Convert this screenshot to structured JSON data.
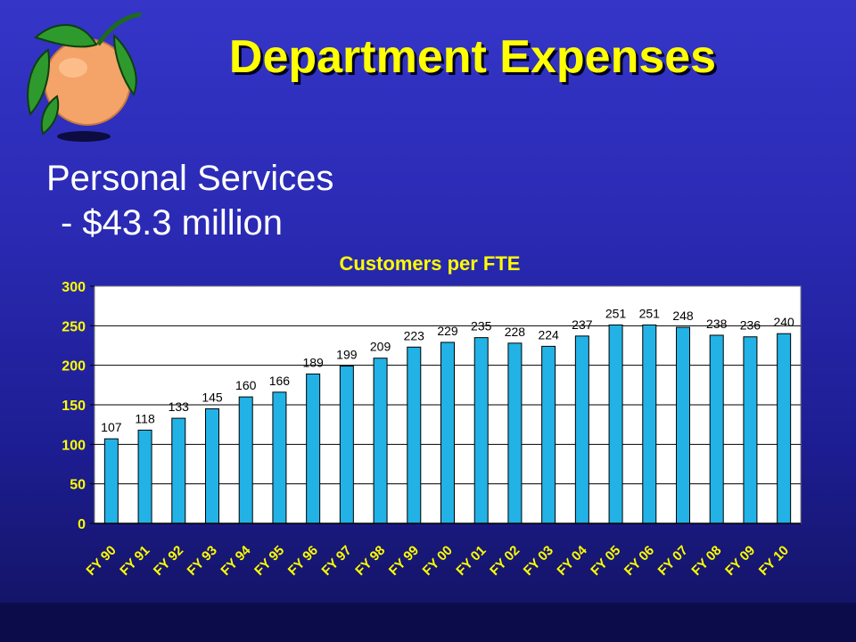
{
  "slide": {
    "title": "Department Expenses",
    "subtitle_line1": "Personal Services",
    "subtitle_line2": "- $43.3 million",
    "logo_icon": "orange-fruit-icon"
  },
  "colors": {
    "title": "#ffff00",
    "bar_fill": "#22b2e6",
    "plot_background": "#ffffff"
  },
  "chart_data": {
    "type": "bar",
    "title": "Customers per FTE",
    "xlabel": "",
    "ylabel": "",
    "ylim": [
      0,
      300
    ],
    "yticks": [
      0,
      50,
      100,
      150,
      200,
      250,
      300
    ],
    "grid": true,
    "categories": [
      "FY 90",
      "FY 91",
      "FY 92",
      "FY 93",
      "FY 94",
      "FY 95",
      "FY 96",
      "FY 97",
      "FY 98",
      "FY 99",
      "FY 00",
      "FY 01",
      "FY 02",
      "FY 03",
      "FY 04",
      "FY 05",
      "FY 06",
      "FY 07",
      "FY 08",
      "FY 09",
      "FY 10"
    ],
    "values": [
      107,
      118,
      133,
      145,
      160,
      166,
      189,
      199,
      209,
      223,
      229,
      235,
      228,
      224,
      237,
      251,
      251,
      248,
      238,
      236,
      240
    ]
  }
}
